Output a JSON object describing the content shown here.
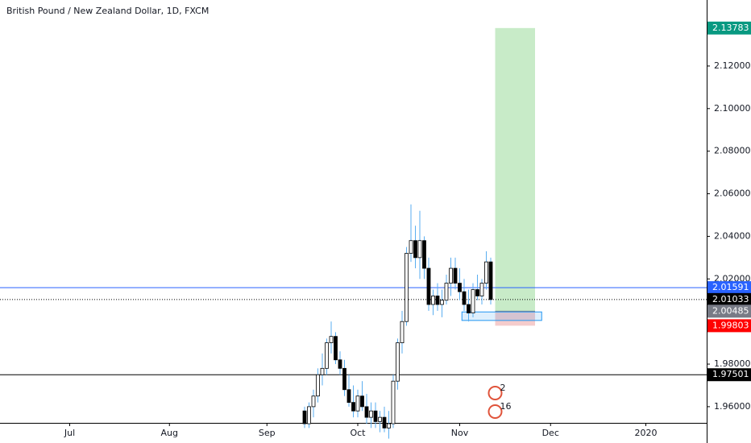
{
  "chart_data": {
    "type": "candlestick",
    "title": "British Pound / New Zealand Dollar, 1D, FXCM",
    "x": [
      -12,
      -11,
      -10,
      -9,
      -8,
      -7,
      -6,
      -5,
      -4,
      -3,
      -2,
      -1,
      0,
      1,
      2,
      3,
      4,
      5,
      6,
      7,
      8,
      9,
      10,
      11,
      12,
      13,
      14,
      15,
      16,
      17,
      18,
      19,
      20,
      21,
      22,
      23,
      24,
      25,
      26,
      27,
      28,
      29,
      30
    ],
    "open": [
      1.958,
      1.952,
      1.96,
      1.965,
      1.975,
      1.978,
      1.99,
      1.993,
      1.982,
      1.978,
      1.968,
      1.962,
      1.958,
      1.965,
      1.96,
      1.955,
      1.958,
      1.953,
      1.955,
      1.95,
      1.952,
      1.972,
      1.99,
      2.0,
      2.032,
      2.038,
      2.03,
      2.038,
      2.025,
      2.008,
      2.012,
      2.008,
      2.01,
      2.018,
      2.025,
      2.018,
      2.014,
      2.008,
      2.004,
      2.015,
      2.012,
      2.018,
      2.028
    ],
    "high": [
      1.96,
      1.962,
      1.968,
      1.978,
      1.985,
      1.992,
      2.0,
      1.995,
      1.986,
      1.982,
      1.975,
      1.97,
      1.968,
      1.972,
      1.966,
      1.962,
      1.962,
      1.958,
      1.96,
      1.958,
      1.975,
      1.992,
      2.005,
      2.035,
      2.055,
      2.045,
      2.052,
      2.04,
      2.03,
      2.015,
      2.018,
      2.015,
      2.022,
      2.03,
      2.03,
      2.025,
      2.02,
      2.015,
      2.018,
      2.022,
      2.02,
      2.033,
      2.03
    ],
    "low": [
      1.95,
      1.95,
      1.955,
      1.962,
      1.97,
      1.975,
      1.985,
      1.98,
      1.975,
      1.965,
      1.96,
      1.955,
      1.955,
      1.958,
      1.952,
      1.95,
      1.95,
      1.948,
      1.948,
      1.945,
      1.95,
      1.968,
      1.985,
      1.998,
      2.028,
      2.025,
      2.02,
      2.02,
      2.005,
      2.003,
      2.005,
      2.002,
      2.008,
      2.012,
      2.015,
      2.01,
      2.005,
      2.0,
      2.002,
      2.01,
      2.008,
      2.015,
      2.008
    ],
    "close": [
      1.952,
      1.96,
      1.965,
      1.975,
      1.978,
      1.99,
      1.993,
      1.982,
      1.978,
      1.968,
      1.962,
      1.958,
      1.965,
      1.96,
      1.955,
      1.958,
      1.953,
      1.955,
      1.95,
      1.952,
      1.972,
      1.99,
      2.0,
      2.032,
      2.038,
      2.03,
      2.038,
      2.025,
      2.008,
      2.012,
      2.008,
      2.01,
      2.018,
      2.025,
      2.018,
      2.014,
      2.008,
      2.004,
      2.015,
      2.012,
      2.018,
      2.028,
      2.01033
    ],
    "up_color": "#ffffff",
    "down_color": "#000000",
    "wick_color": "#5aaef0",
    "xlim": [
      -80.73,
      78.73
    ],
    "xticks": [
      {
        "value": -65,
        "label": "Jul"
      },
      {
        "value": -42.5,
        "label": "Aug"
      },
      {
        "value": -20.5,
        "label": "Sep"
      },
      {
        "value": 0,
        "label": "Oct"
      },
      {
        "value": 23,
        "label": "Nov"
      },
      {
        "value": 43.5,
        "label": "Dec"
      },
      {
        "value": 65,
        "label": "2020"
      }
    ],
    "ylim": [
      1.9524,
      2.151
    ],
    "yticks": [
      {
        "value": 1.96,
        "label": "1.96000"
      },
      {
        "value": 1.98,
        "label": "1.98000"
      },
      {
        "value": 2.02,
        "label": "2.02000"
      },
      {
        "value": 2.04,
        "label": "2.04000"
      },
      {
        "value": 2.06,
        "label": "2.06000"
      },
      {
        "value": 2.08,
        "label": "2.08000"
      },
      {
        "value": 2.1,
        "label": "2.10000"
      },
      {
        "value": 2.12,
        "label": "2.12000"
      }
    ],
    "levels": [
      {
        "value": 2.01591,
        "color": "#2962ff",
        "style": "solid"
      },
      {
        "value": 2.01033,
        "color": "#000000",
        "style": "dotted"
      },
      {
        "value": 1.97501,
        "color": "#000000",
        "style": "solid"
      }
    ],
    "position": {
      "x": [
        31,
        40
      ],
      "entry": 2.00485,
      "target": 2.13783,
      "stop": 1.99803,
      "target_color": "#c8ebc8",
      "stop_color": "#f5cccc",
      "target_tag": "#089981",
      "entry_tag": "#787b86",
      "stop_tag": "#ff0000"
    },
    "zone": {
      "x": [
        23.5,
        41.5
      ],
      "top": 2.0045,
      "bottom": 2.0005,
      "color": "#2196f3"
    },
    "events": [
      {
        "x": 31,
        "label": "2"
      },
      {
        "x": 31,
        "label": "16"
      }
    ]
  }
}
